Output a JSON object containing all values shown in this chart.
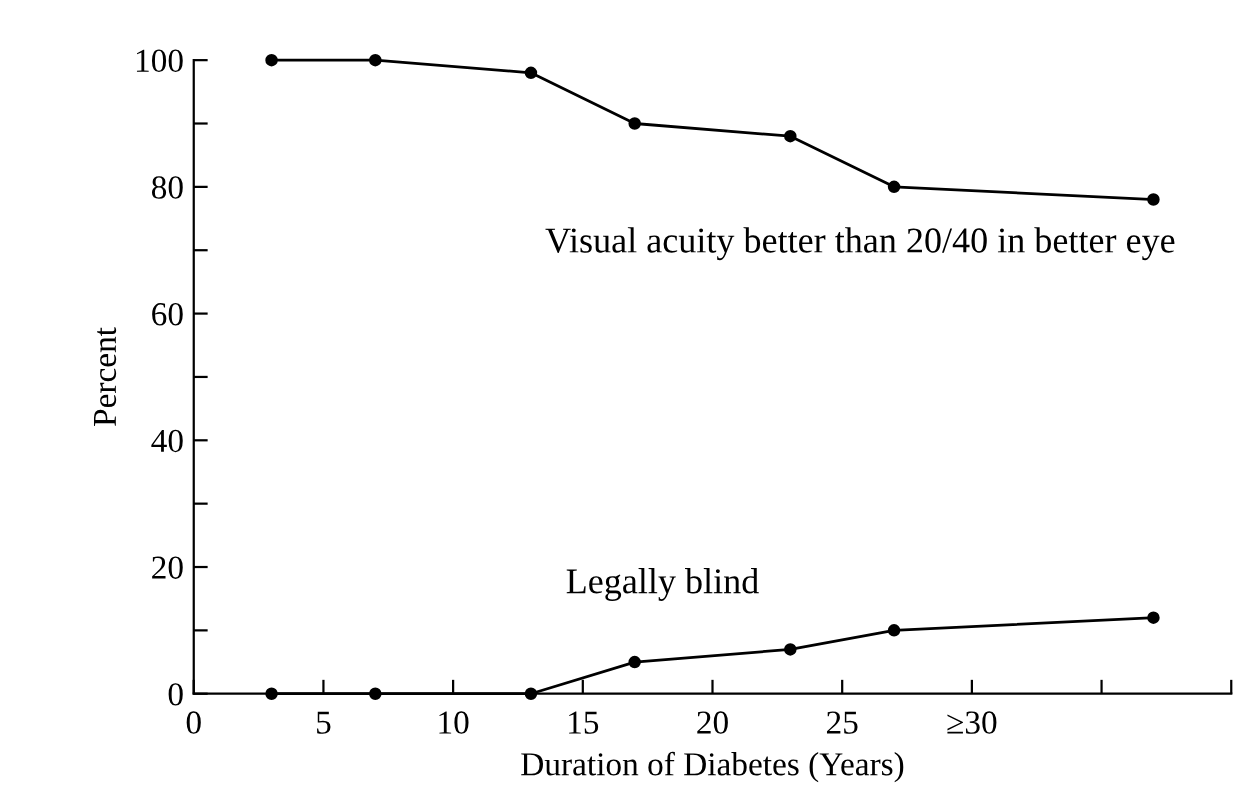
{
  "chart_data": {
    "type": "line",
    "xlabel": "Duration of Diabetes (Years)",
    "ylabel": "Percent",
    "x": [
      3,
      7,
      13,
      17,
      23,
      27,
      37
    ],
    "series": [
      {
        "name": "Visual acuity better than 20/40 in better eye",
        "color": "#000000",
        "values": [
          100,
          100,
          98,
          90,
          88,
          80,
          78
        ]
      },
      {
        "name": "Legally blind",
        "color": "#000000",
        "values": [
          0,
          0,
          0,
          5,
          7,
          10,
          12
        ]
      }
    ],
    "xlim": [
      0,
      40
    ],
    "ylim": [
      0,
      100
    ],
    "xticks": [
      0,
      5,
      10,
      15,
      20,
      25,
      {
        "value": 30,
        "label": "≥30"
      },
      {
        "value": 35,
        "label": null
      },
      {
        "value": 40,
        "label": null
      }
    ],
    "yticks": [
      0,
      {
        "value": 10,
        "label": null
      },
      20,
      {
        "value": 30,
        "label": null
      },
      40,
      {
        "value": 50,
        "label": null
      },
      60,
      {
        "value": 70,
        "label": null
      },
      80,
      {
        "value": 90,
        "label": null
      },
      100
    ],
    "marker": "circle",
    "line_style": "solid",
    "grid": false,
    "legend": false
  }
}
